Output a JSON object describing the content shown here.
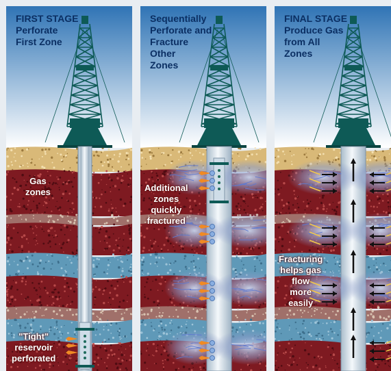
{
  "panels": [
    {
      "title": [
        "FIRST STAGE",
        "Perforate",
        "First Zone"
      ],
      "labels": [
        {
          "id": "gas-zones",
          "lines": [
            "Gas",
            "zones"
          ]
        },
        {
          "id": "tight-reservoir",
          "lines": [
            "\"Tight\"",
            "reservoir",
            "perforated"
          ]
        }
      ]
    },
    {
      "title": [
        "Sequentially",
        "Perforate and",
        "Fracture",
        "Other",
        "Zones"
      ],
      "labels": [
        {
          "id": "additional-zones",
          "lines": [
            "Additional",
            "zones",
            "quickly",
            "fractured"
          ]
        }
      ]
    },
    {
      "title": [
        "FINAL STAGE",
        "Produce Gas",
        "from All",
        "Zones"
      ],
      "labels": [
        {
          "id": "fracturing-helps",
          "lines": [
            "Fracturing",
            "helps gas",
            "flow",
            "more",
            "easily"
          ]
        }
      ]
    }
  ],
  "colors": {
    "sky_top": "#2f74b5",
    "sky_bottom": "#ffffff",
    "rig": "#0e5a56",
    "sand": "#d9b978",
    "rock_red": "#7e1a21",
    "water_blue": "#5f99b8",
    "pipe": "#d6e2ec",
    "perforation": "#f08a24",
    "title_text": "#0b2f63"
  }
}
